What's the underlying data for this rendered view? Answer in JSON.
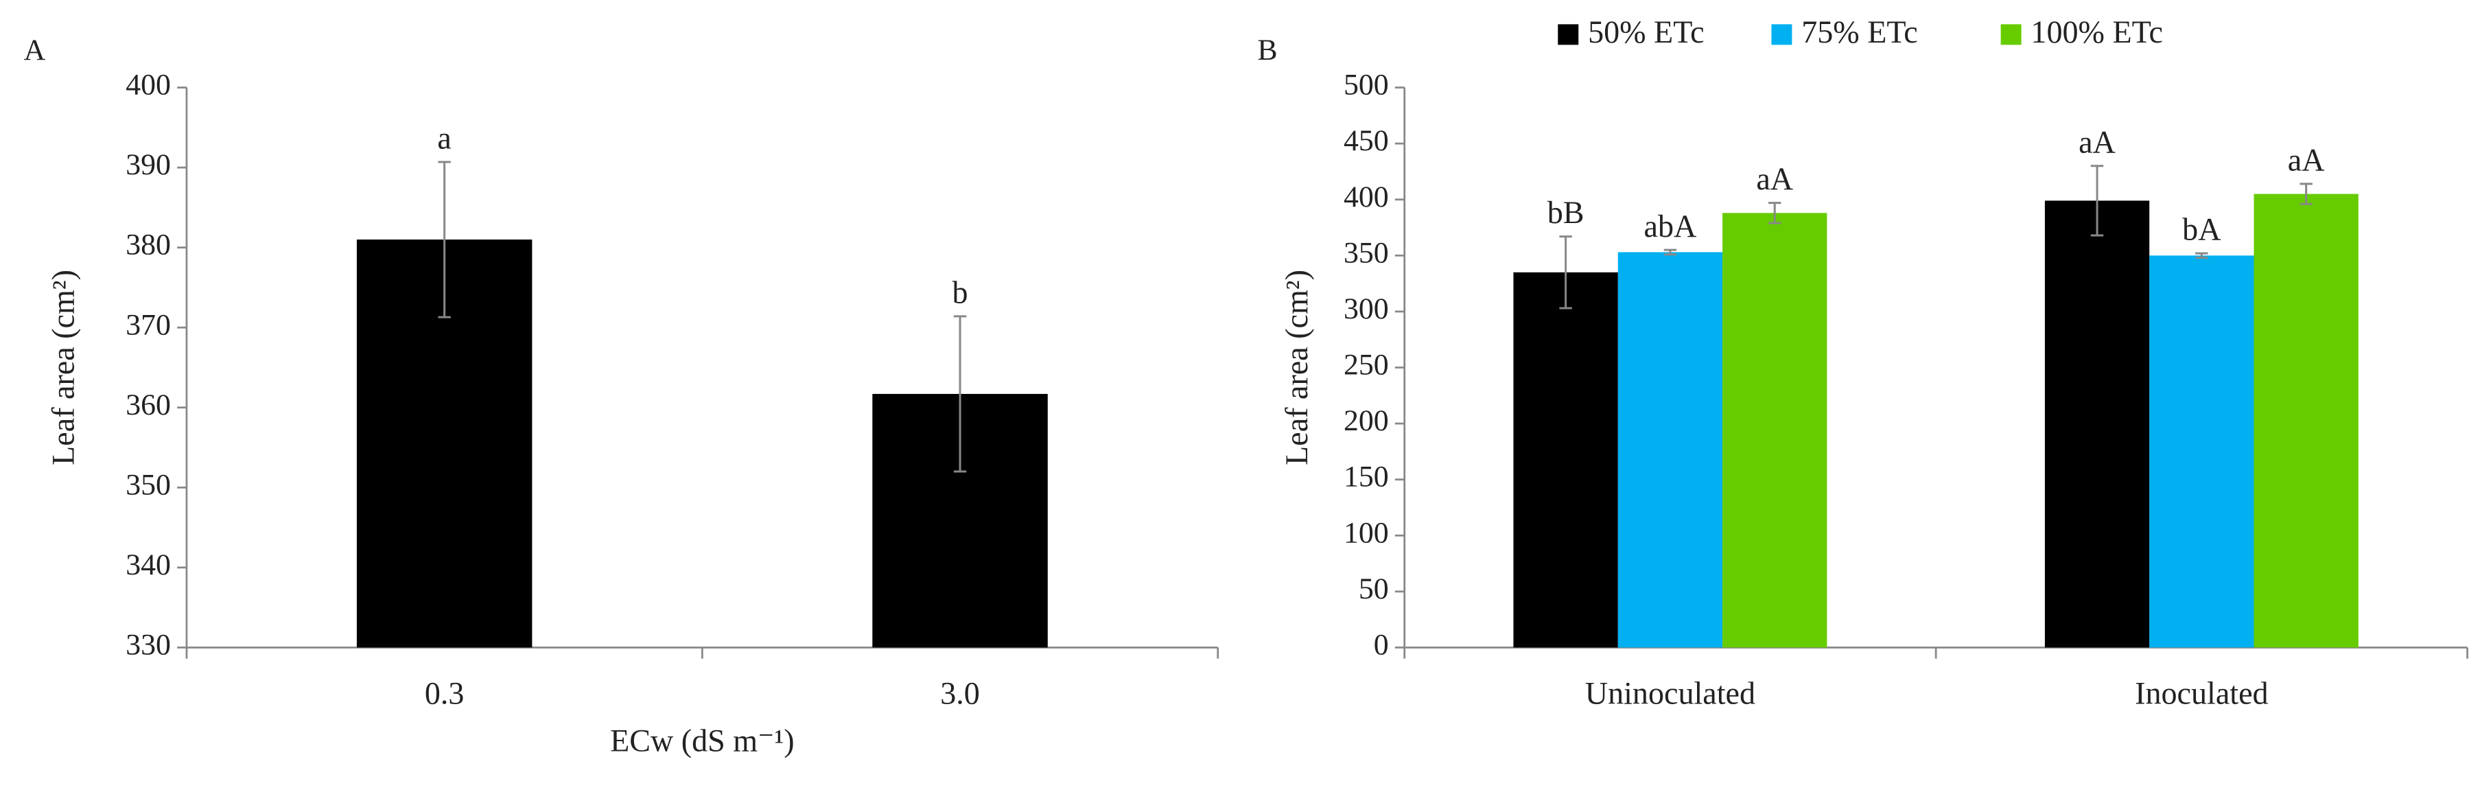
{
  "chart_data": [
    {
      "type": "bar",
      "panel": "A",
      "y_label": "Leaf area (cm²)",
      "x_label": "ECw (dS m⁻¹)",
      "categories": [
        "0.3",
        "3.0"
      ],
      "values": [
        381,
        361.7
      ],
      "errors": [
        9.7,
        9.7
      ],
      "annotations": [
        "a",
        "b"
      ],
      "color": "#000000",
      "ylim": [
        330,
        400
      ],
      "yticks": [
        330,
        340,
        350,
        360,
        370,
        380,
        390,
        400
      ]
    },
    {
      "type": "grouped_bar",
      "panel": "B",
      "y_label": "Leaf area (cm²)",
      "categories": [
        "Uninoculated",
        "Inoculated"
      ],
      "series": [
        {
          "name": "50% ETc",
          "color": "#000000",
          "values": [
            335,
            399
          ],
          "errors": [
            32,
            31
          ],
          "annotations": [
            "bB",
            "aA"
          ]
        },
        {
          "name": "75% ETc",
          "color": "#00b0f0",
          "values": [
            353,
            350
          ],
          "errors": [
            2,
            2
          ],
          "annotations": [
            "abA",
            "bA"
          ]
        },
        {
          "name": "100% ETc",
          "color": "#66cc00",
          "values": [
            388,
            405
          ],
          "errors": [
            9,
            9
          ],
          "annotations": [
            "aA",
            "aA"
          ]
        }
      ],
      "legend": "top",
      "ylim": [
        0,
        500
      ],
      "yticks": [
        0,
        50,
        100,
        150,
        200,
        250,
        300,
        350,
        400,
        450,
        500
      ]
    }
  ]
}
